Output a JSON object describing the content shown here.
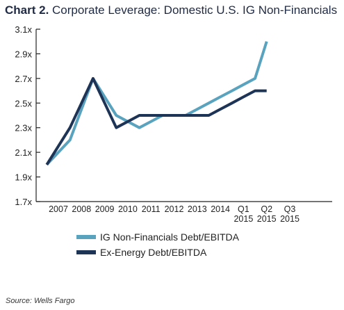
{
  "header": {
    "title_prefix": "Chart 2.",
    "title_text": " Corporate Leverage: Domestic U.S. IG Non-Financials"
  },
  "source_text": "Source:  Wells Fargo",
  "colors": {
    "series_light": "#5aa3bf",
    "series_dark": "#1d3457",
    "axis": "#222222",
    "text": "#222222"
  },
  "chart_data": {
    "type": "line",
    "title": "Corporate Leverage: Domestic U.S. IG Non-Financials",
    "categories": [
      "2007",
      "2008",
      "2009",
      "2010",
      "2011",
      "2012",
      "2013",
      "2014",
      "Q1 2015",
      "Q2 2015",
      "Q3 2015"
    ],
    "x": [
      2006.5,
      2007,
      2007.5,
      2008,
      2008.5,
      2009,
      2009.5,
      2010,
      2010.5,
      2011,
      2011.5,
      2012,
      2012.5,
      2013,
      2013.5,
      2014,
      2014.5,
      2015,
      2015.5,
      2016
    ],
    "y_tick_labels": [
      "1.7x",
      "1.9x",
      "2.1x",
      "2.3x",
      "2.5x",
      "2.7x",
      "2.9x",
      "3.1x"
    ],
    "ylim": [
      1.7,
      3.1
    ],
    "y_ticks": [
      1.7,
      1.9,
      2.1,
      2.3,
      2.5,
      2.7,
      2.9,
      3.1
    ],
    "series": [
      {
        "name": "IG Non-Financials Debt/EBITDA",
        "color": "#5aa3bf",
        "values": [
          2.0,
          2.1,
          2.2,
          2.45,
          2.7,
          2.55,
          2.4,
          2.35,
          2.3,
          2.35,
          2.4,
          2.4,
          2.4,
          2.45,
          2.5,
          2.55,
          2.6,
          2.65,
          2.7,
          3.0
        ]
      },
      {
        "name": "Ex-Energy Debt/EBITDA",
        "color": "#1d3457",
        "values": [
          2.0,
          2.15,
          2.3,
          2.5,
          2.7,
          2.5,
          2.3,
          2.35,
          2.4,
          2.4,
          2.4,
          2.4,
          2.4,
          2.4,
          2.4,
          2.45,
          2.5,
          2.55,
          2.6,
          2.6
        ]
      }
    ],
    "legend_position": "bottom-left",
    "grid": false
  }
}
